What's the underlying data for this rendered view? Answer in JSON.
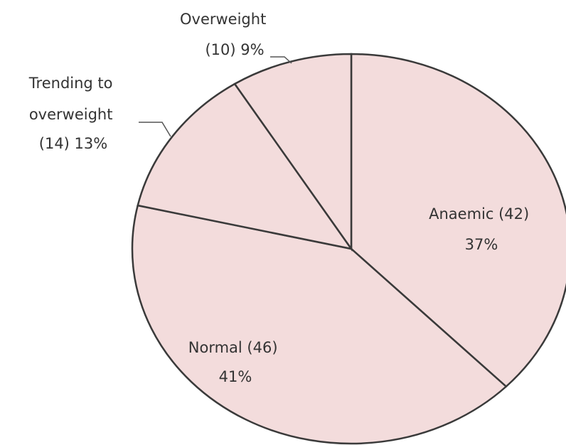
{
  "chart_data": {
    "type": "pie",
    "categories": [
      "Anaemic",
      "Normal",
      "Trending to overweight",
      "Overweight"
    ],
    "values": [
      42,
      46,
      14,
      10
    ],
    "percent_labels": [
      "37%",
      "41%",
      "13%",
      "9%"
    ],
    "slice_color": "#f3dcdc",
    "border_color": "#3a3a3a",
    "labels": [
      {
        "lines": [
          "Anaemic (42)",
          "37%"
        ]
      },
      {
        "lines": [
          "Normal (46)",
          "41%"
        ]
      },
      {
        "lines": [
          "Trending to",
          "overweight",
          "(14) 13%"
        ]
      },
      {
        "lines": [
          "Overweight",
          "(10) 9%"
        ]
      }
    ],
    "title": "",
    "legend": "none"
  }
}
